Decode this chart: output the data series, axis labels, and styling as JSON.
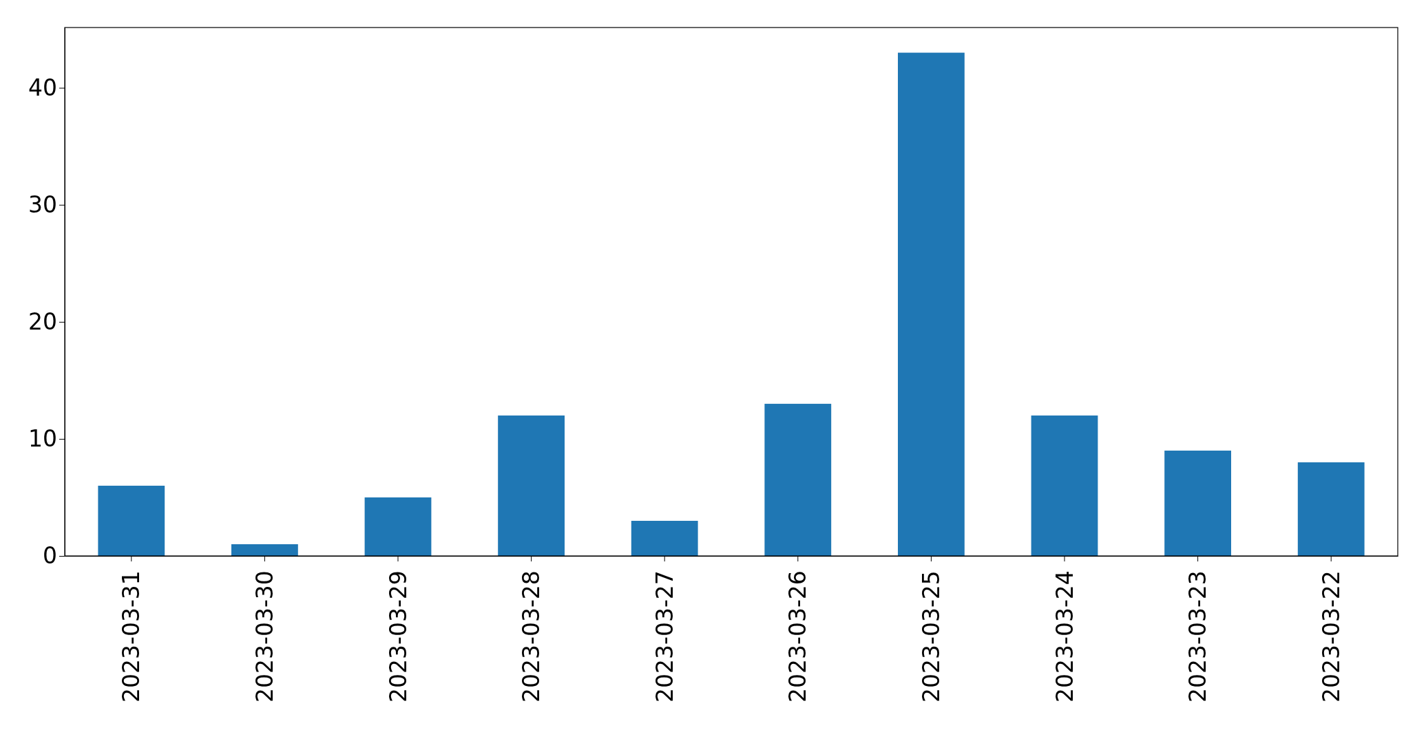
{
  "chart_data": {
    "type": "bar",
    "categories": [
      "2023-03-31",
      "2023-03-30",
      "2023-03-29",
      "2023-03-28",
      "2023-03-27",
      "2023-03-26",
      "2023-03-25",
      "2023-03-24",
      "2023-03-23",
      "2023-03-22"
    ],
    "values": [
      6,
      1,
      5,
      12,
      3,
      13,
      43,
      12,
      9,
      8
    ],
    "color": "#1f77b4",
    "ylim": [
      0,
      45.15
    ],
    "yticks": [
      0,
      10,
      20,
      30,
      40
    ],
    "grid": false
  }
}
